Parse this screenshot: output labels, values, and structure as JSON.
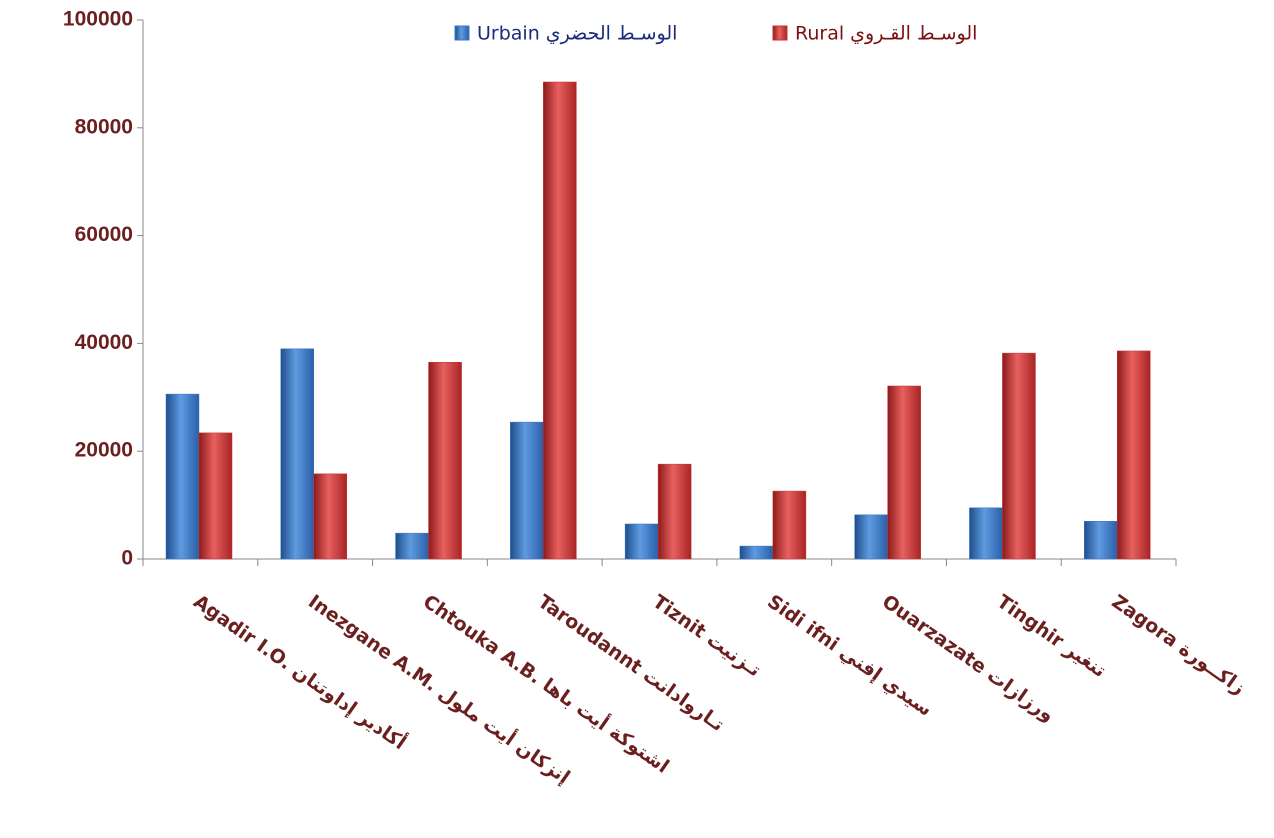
{
  "chart_data": {
    "type": "bar",
    "categories": [
      "Agadir  I.O. أكادير  إداوتنان",
      "Inezgane A.M. إنزكان أيت ملول",
      "Chtouka A.B. اشتوكة أيت  باها",
      "Taroudannt تـاروادانت",
      "Tiznit تـزنيت",
      "Sidi ifni سيدي إفني",
      "Ouarzazate ورزازات",
      "Tinghir تنغير",
      "Zagora زاكــورة"
    ],
    "series": [
      {
        "name": "Urbain  الوسـط الحضري",
        "color": "#3a78c8",
        "values": [
          30600,
          39000,
          4800,
          25400,
          6500,
          2400,
          8200,
          9500,
          7000
        ]
      },
      {
        "name": "Rural  الوسـط القـروي",
        "color": "#c83232",
        "values": [
          23400,
          15800,
          36500,
          88500,
          17600,
          12600,
          32100,
          38200,
          38600
        ]
      }
    ],
    "ylim": [
      0,
      100000
    ],
    "yticks": [
      0,
      20000,
      40000,
      60000,
      80000,
      100000
    ],
    "legend": "top"
  }
}
